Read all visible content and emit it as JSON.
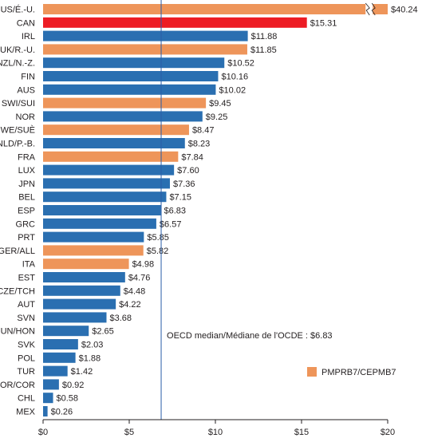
{
  "chart_data": {
    "type": "bar",
    "orientation": "horizontal",
    "categories": [
      "US/É.-U.",
      "CAN",
      "IRL",
      "UK/R.-U.",
      "NZL/N.-Z.",
      "FIN",
      "AUS",
      "SWI/SUI",
      "NOR",
      "SWE/SUÈ",
      "NLD/P.-B.",
      "FRA",
      "LUX",
      "JPN",
      "BEL",
      "ESP",
      "GRC",
      "PRT",
      "GER/ALL",
      "ITA",
      "EST",
      "CZE/TCH",
      "AUT",
      "SVN",
      "HUN/HON",
      "SVK",
      "POL",
      "TUR",
      "KOR/COR",
      "CHL",
      "MEX"
    ],
    "values": [
      40.24,
      15.31,
      11.88,
      11.85,
      10.52,
      10.16,
      10.02,
      9.45,
      9.25,
      8.47,
      8.23,
      7.84,
      7.6,
      7.36,
      7.15,
      6.83,
      6.57,
      5.85,
      5.82,
      4.98,
      4.76,
      4.48,
      4.22,
      3.68,
      2.65,
      2.03,
      1.88,
      1.42,
      0.92,
      0.58,
      0.26
    ],
    "value_labels": [
      "$40.24",
      "$15.31",
      "$11.88",
      "$11.85",
      "$10.52",
      "$10.16",
      "$10.02",
      "$9.45",
      "$9.25",
      "$8.47",
      "$8.23",
      "$7.84",
      "$7.60",
      "$7.36",
      "$7.15",
      "$6.83",
      "$6.57",
      "$5.85",
      "$5.82",
      "$4.98",
      "$4.76",
      "$4.48",
      "$4.22",
      "$3.68",
      "$2.65",
      "$2.03",
      "$1.88",
      "$1.42",
      "$0.92",
      "$0.58",
      "$0.26"
    ],
    "bar_groups": [
      "pmprb7",
      "highlight",
      "other",
      "pmprb7",
      "other",
      "other",
      "other",
      "pmprb7",
      "other",
      "pmprb7",
      "other",
      "pmprb7",
      "other",
      "other",
      "other",
      "other",
      "other",
      "other",
      "pmprb7",
      "pmprb7",
      "other",
      "other",
      "other",
      "other",
      "other",
      "other",
      "other",
      "other",
      "other",
      "other",
      "other"
    ],
    "axis_break": {
      "category": "US/É.-U.",
      "between": [
        20,
        40.24
      ]
    },
    "colors": {
      "other": "#2a6fb1",
      "pmprb7": "#ee955a",
      "highlight": "#ed1c24",
      "median_line": "#2a5ea8",
      "axis": "#231f20"
    },
    "xlim": [
      0,
      20
    ],
    "xticks": [
      0,
      5,
      10,
      15,
      20
    ],
    "xtick_labels": [
      "$0",
      "$5",
      "$10",
      "$15",
      "$20"
    ],
    "grid": false,
    "median": {
      "value": 6.83,
      "label": "OECD median/Médiane de l'OCDE : $6.83"
    },
    "legend": {
      "position": "bottom-right",
      "entries": [
        {
          "label": "PMPRB7/CEPMB7",
          "group": "pmprb7"
        }
      ]
    }
  }
}
